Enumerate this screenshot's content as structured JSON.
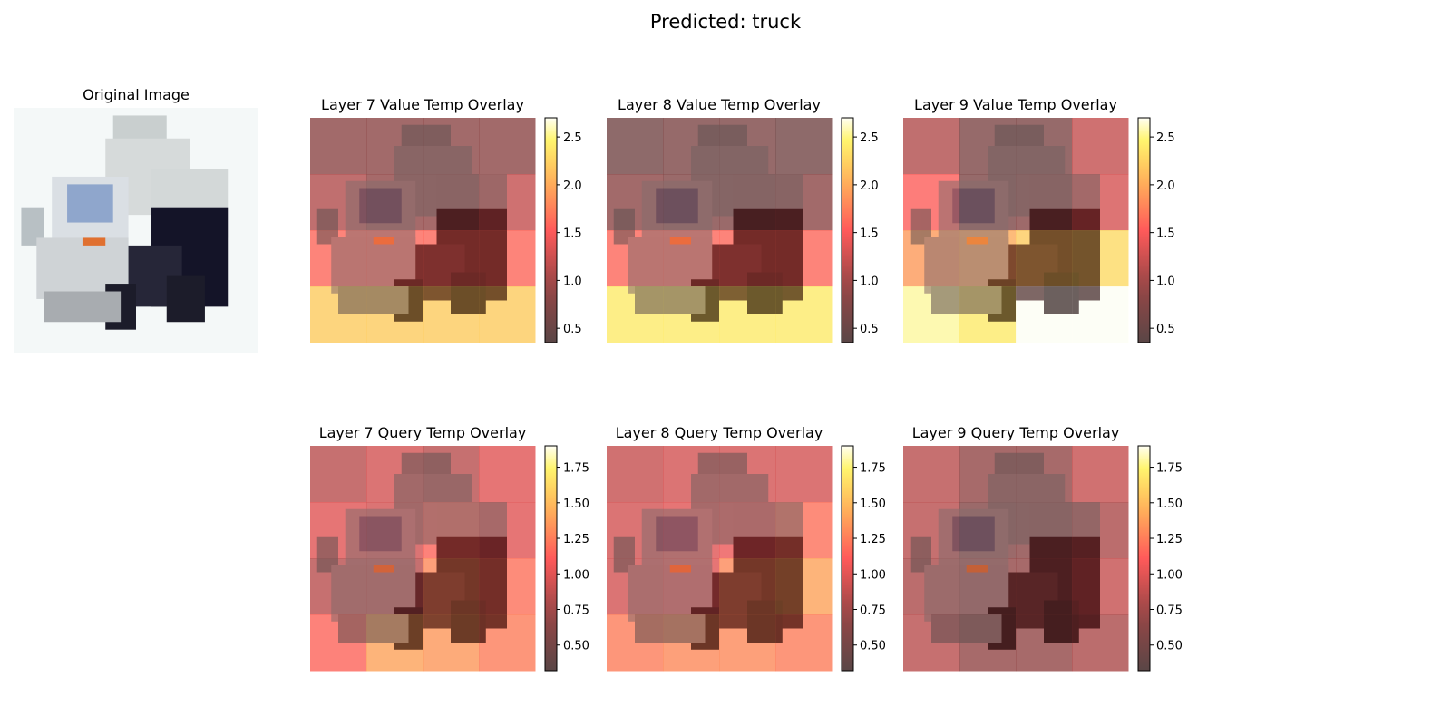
{
  "figure": {
    "suptitle": "Predicted: truck"
  },
  "chart_data": [
    {
      "type": "image",
      "title": "Original Image",
      "image_grid_size": 32,
      "subject": "white and grey dump truck with dark wheels and an orange marker light, facing left, on a pale background"
    },
    {
      "type": "heatmap",
      "title": "Layer 7 Value Temp Overlay",
      "grid": [
        [
          0.85,
          0.85,
          0.85,
          0.85
        ],
        [
          1.1,
          0.9,
          0.9,
          1.2
        ],
        [
          1.6,
          1.6,
          1.6,
          1.6
        ],
        [
          2.2,
          2.2,
          2.2,
          2.2
        ]
      ],
      "colorbar": {
        "min": 0.35,
        "max": 2.7,
        "ticks": [
          0.5,
          1.0,
          1.5,
          2.0,
          2.5
        ],
        "labels": [
          "0.5",
          "1.0",
          "1.5",
          "2.0",
          "2.5"
        ]
      }
    },
    {
      "type": "heatmap",
      "title": "Layer 8 Value Temp Overlay",
      "grid": [
        [
          0.6,
          0.7,
          0.7,
          0.6
        ],
        [
          0.85,
          0.75,
          0.75,
          0.85
        ],
        [
          1.6,
          1.6,
          1.6,
          1.6
        ],
        [
          2.4,
          2.4,
          2.4,
          2.4
        ]
      ],
      "colorbar": {
        "min": 0.35,
        "max": 2.7,
        "ticks": [
          0.5,
          1.0,
          1.5,
          2.0,
          2.5
        ],
        "labels": [
          "0.5",
          "1.0",
          "1.5",
          "2.0",
          "2.5"
        ]
      }
    },
    {
      "type": "heatmap",
      "title": "Layer 9 Value Temp Overlay",
      "grid": [
        [
          1.1,
          0.7,
          0.7,
          1.2
        ],
        [
          1.55,
          0.7,
          0.8,
          1.3
        ],
        [
          1.9,
          2.0,
          2.2,
          2.3
        ],
        [
          2.55,
          2.4,
          2.7,
          2.7
        ]
      ],
      "colorbar": {
        "min": 0.35,
        "max": 2.7,
        "ticks": [
          0.5,
          1.0,
          1.5,
          2.0,
          2.5
        ],
        "labels": [
          "0.5",
          "1.0",
          "1.5",
          "2.0",
          "2.5"
        ]
      }
    },
    {
      "type": "heatmap",
      "title": "Layer 7 Query Temp Overlay",
      "grid": [
        [
          0.85,
          0.95,
          0.85,
          1.0
        ],
        [
          1.0,
          0.95,
          1.15,
          1.0
        ],
        [
          0.85,
          0.85,
          1.3,
          1.2
        ],
        [
          1.15,
          1.4,
          1.35,
          1.25
        ]
      ],
      "colorbar": {
        "min": 0.32,
        "max": 1.9,
        "ticks": [
          0.5,
          0.75,
          1.0,
          1.25,
          1.5,
          1.75
        ],
        "labels": [
          "0.50",
          "0.75",
          "1.00",
          "1.25",
          "1.50",
          "1.75"
        ]
      }
    },
    {
      "type": "heatmap",
      "title": "Layer 8 Query Temp Overlay",
      "grid": [
        [
          0.9,
          0.95,
          0.95,
          0.95
        ],
        [
          0.95,
          1.0,
          1.05,
          1.2
        ],
        [
          0.95,
          1.0,
          1.3,
          1.4
        ],
        [
          1.25,
          1.3,
          1.3,
          1.25
        ]
      ],
      "colorbar": {
        "min": 0.32,
        "max": 1.9,
        "ticks": [
          0.5,
          0.75,
          1.0,
          1.25,
          1.5,
          1.75
        ],
        "labels": [
          "0.50",
          "0.75",
          "1.00",
          "1.25",
          "1.50",
          "1.75"
        ]
      }
    },
    {
      "type": "heatmap",
      "title": "Layer 9 Query Temp Overlay",
      "grid": [
        [
          0.85,
          0.7,
          0.7,
          0.9
        ],
        [
          0.85,
          0.6,
          0.65,
          0.8
        ],
        [
          0.8,
          0.7,
          0.7,
          0.9
        ],
        [
          0.85,
          0.7,
          0.7,
          0.8
        ]
      ],
      "colorbar": {
        "min": 0.32,
        "max": 1.9,
        "ticks": [
          0.5,
          0.75,
          1.0,
          1.25,
          1.5,
          1.75
        ],
        "labels": [
          "0.50",
          "0.75",
          "1.00",
          "1.25",
          "1.50",
          "1.75"
        ]
      }
    }
  ]
}
